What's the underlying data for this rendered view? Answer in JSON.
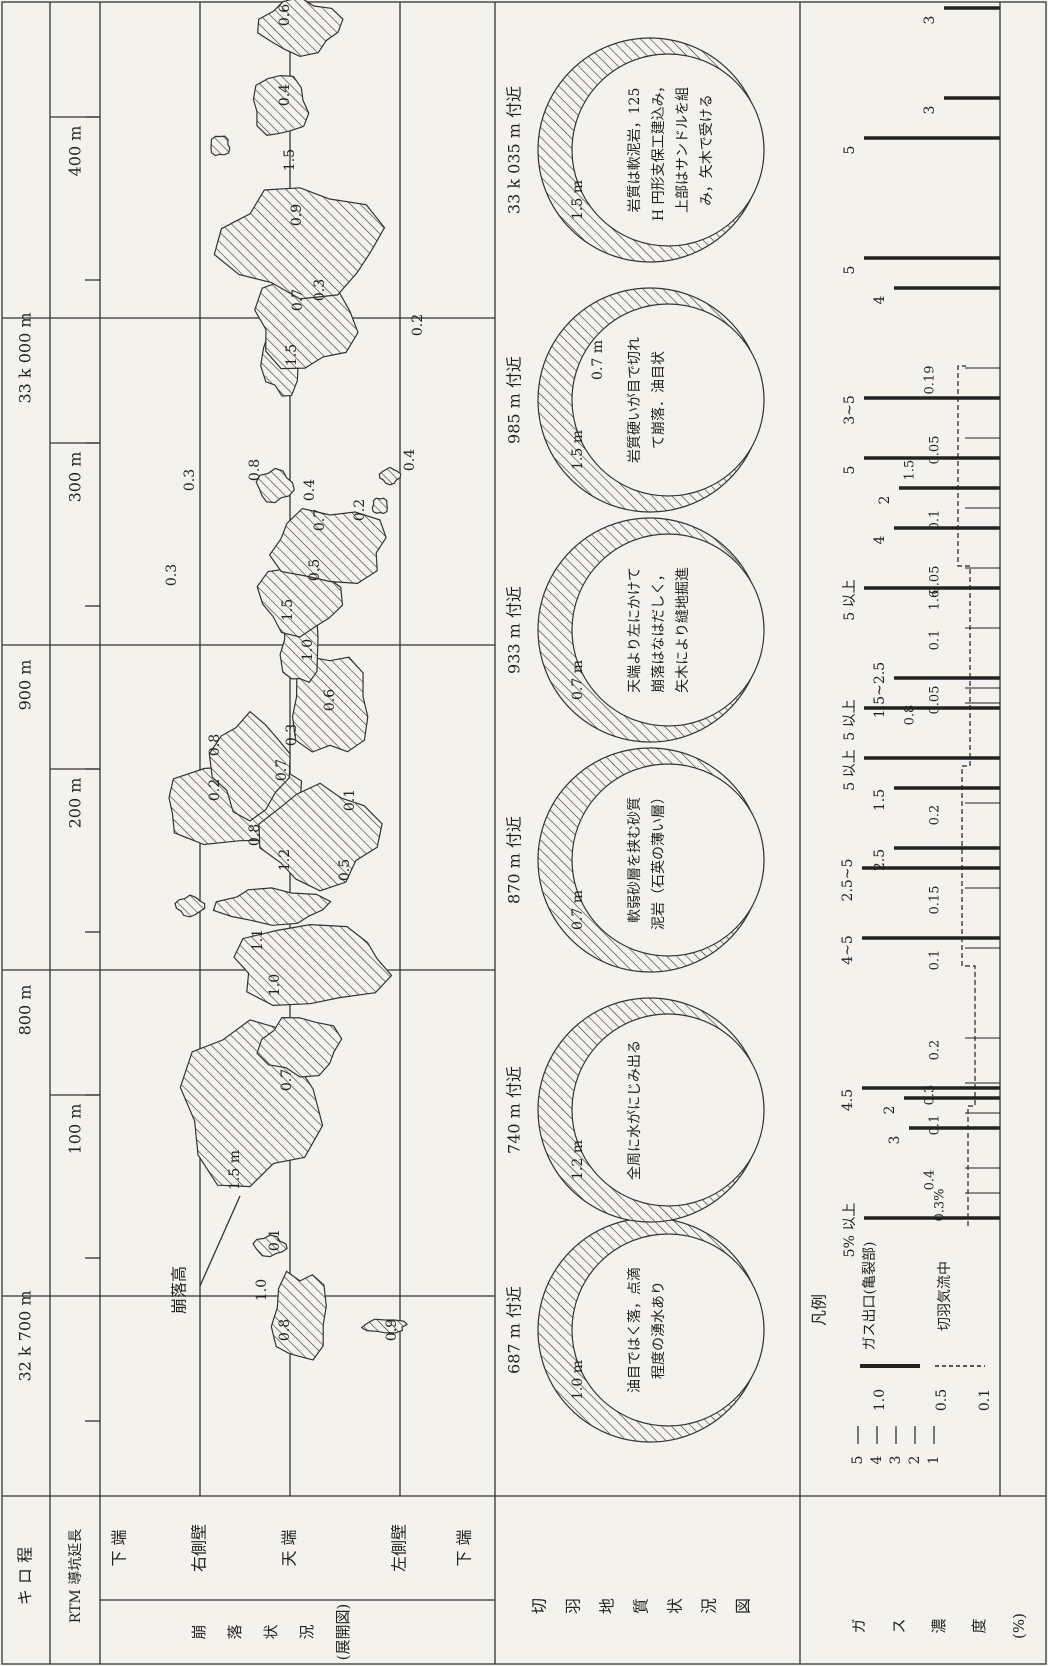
{
  "row_labels": {
    "kilometrage": "キ ロ 程",
    "rtm": "RTM 導坑延長",
    "collapse": [
      "崩",
      "落",
      "状",
      "況",
      "(展開図)"
    ],
    "bottom_top": "下 端",
    "right_wall": "右側壁",
    "crown": "天 端",
    "left_wall": "左側壁",
    "bottom_low": "下 端",
    "geology": [
      "切",
      "羽",
      "地",
      "質",
      "状",
      "況",
      "図"
    ],
    "gas": [
      "ガ",
      "ス",
      "濃",
      "度",
      "(%)"
    ]
  },
  "kilometrage": [
    "32 k 700 m",
    "800 m",
    "900 m",
    "33 k 000 m"
  ],
  "rtm_length": [
    "100 m",
    "200 m",
    "300 m",
    "400 m"
  ],
  "collapse_note": "崩落高",
  "collapse_heights": [
    "0.8",
    "1.0",
    "0.1",
    "0.9",
    "1.5 m",
    "0.7",
    "1.0",
    "1.1",
    "0.8",
    "0.2",
    "0.8",
    "1.2",
    "0.5",
    "0.7",
    "0.3",
    "0.6",
    "0.1",
    "1.0",
    "1.5",
    "0.3",
    "0.5",
    "0.7",
    "0.8",
    "0.3",
    "0.2",
    "0.4",
    "0.4",
    "1.5",
    "0.7",
    "0.3",
    "0.2",
    "0.9",
    "1.5",
    "0.4",
    "0.6"
  ],
  "sections": [
    {
      "title": "687 m 付近",
      "depths": [
        "1.0 m"
      ],
      "note": [
        "油目ではく落，点滴",
        "程度の湧水あり"
      ]
    },
    {
      "title": "740 m 付近",
      "depths": [
        "1.2 m"
      ],
      "note": [
        "全周に水がにじみ出る"
      ]
    },
    {
      "title": "870 m 付近",
      "depths": [
        "0.7 m"
      ],
      "note": [
        "軟弱砂層を挟む砂質",
        "泥岩（石英の薄い層）"
      ]
    },
    {
      "title": "933 m 付近",
      "depths": [
        "0.7 m"
      ],
      "note": [
        "天端より左にかけて",
        "崩落はなはだしく，",
        "矢木により縫地掘進"
      ]
    },
    {
      "title": "985 m 付近",
      "depths": [
        "1.5 m",
        "0.7 m"
      ],
      "note": [
        "岩質硬いが目で切れ",
        "て崩落．油目状"
      ]
    },
    {
      "title": "33 k 035 m 付近",
      "depths": [
        "1.5 m"
      ],
      "note": [
        "岩質は軟泥岩，125",
        "H 円形支保工建込み，",
        "上部はサンドルを組",
        "み，矢木で受ける"
      ]
    }
  ],
  "gas_legend": {
    "title": "凡例",
    "outlet": "ガス出口(亀裂部)",
    "face": "切羽気流中"
  },
  "gas_scale_outlet": [
    "5",
    "4",
    "3",
    "2",
    "1"
  ],
  "gas_scale_face": [
    "1.0",
    "0.5",
    "0.1"
  ],
  "gas_outlet_labels": [
    "3",
    "3",
    "5",
    "5",
    "4",
    "3~5",
    "5",
    "2",
    "4",
    "5 以上",
    "1.5~2.5",
    "5 以上",
    "5 以上",
    "1.5",
    "2.5",
    "2.5~5",
    "4~5",
    "2",
    "4.5",
    "3",
    "5% 以上"
  ],
  "gas_face_labels": [
    "0.19",
    "0.05",
    "1.5",
    "0.1",
    "0.05",
    "1.6",
    "0.1",
    "0.05",
    "0.8",
    "0.2",
    "0.15",
    "0.1",
    "0.2",
    "0.3",
    "0.1",
    "0.4",
    "0.3%"
  ]
}
